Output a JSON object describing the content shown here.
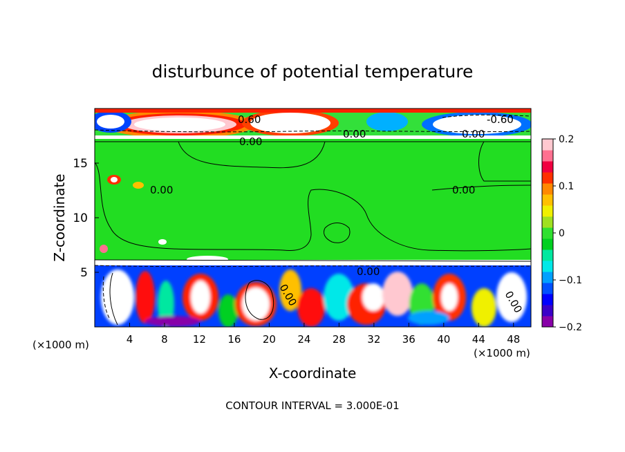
{
  "chart_data": {
    "type": "heatmap",
    "title": "disturbunce of potential temperature",
    "xlabel": "X-coordinate",
    "ylabel": "Z-coordinate",
    "x_unit": "(×1000 m)",
    "y_unit": "(×1000 m)",
    "xlim": [
      0,
      50
    ],
    "ylim": [
      0,
      20
    ],
    "x_ticks": [
      4,
      8,
      12,
      16,
      20,
      24,
      28,
      32,
      36,
      40,
      44,
      48
    ],
    "y_ticks": [
      5,
      10,
      15
    ],
    "colorbar": {
      "range": [
        -0.2,
        0.2
      ],
      "tick_values": [
        0.2,
        0.1,
        0,
        -0.1,
        -0.2
      ],
      "tick_labels": [
        "0.2",
        "0.1",
        "0",
        "−0.1",
        "−0.2"
      ],
      "colors": [
        "#8800a8",
        "#3a00c8",
        "#0000ff",
        "#0050ff",
        "#00a0ff",
        "#00e8e8",
        "#00e8a0",
        "#00d020",
        "#30e030",
        "#a0e020",
        "#f0f000",
        "#ffc000",
        "#ff8800",
        "#ff3000",
        "#f00040",
        "#ff7090",
        "#ffc8d0"
      ]
    },
    "contour_labels": [
      "0.60",
      "-0.60",
      "0.00",
      "0.00",
      "0.00",
      "0.00",
      "0.00",
      "0.00",
      "0.00",
      "0.00"
    ],
    "footer": "CONTOUR INTERVAL = 3.000E-01"
  }
}
